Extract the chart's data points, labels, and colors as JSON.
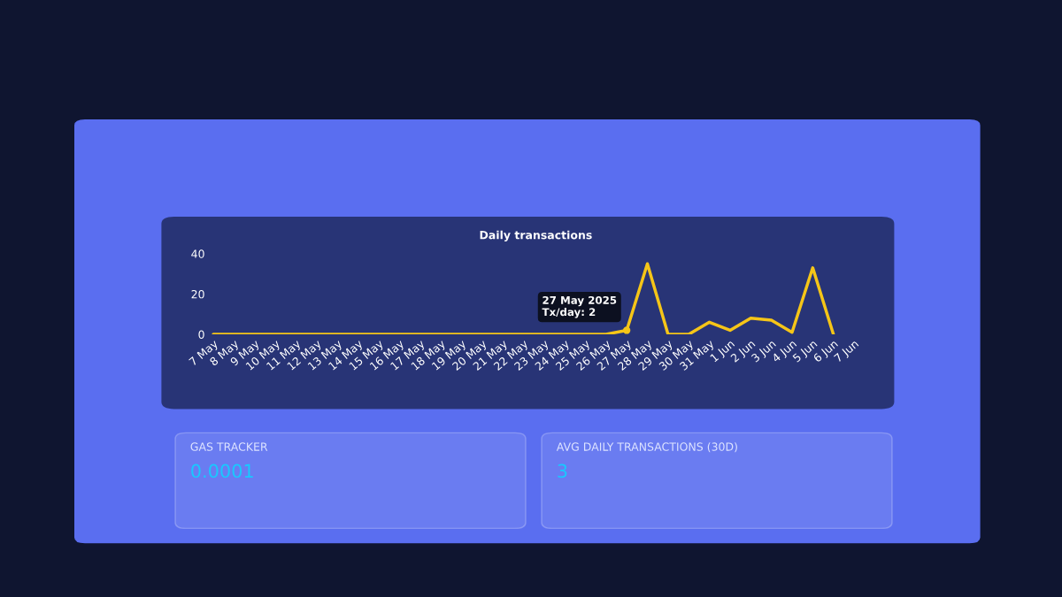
{
  "chart_data": {
    "type": "line",
    "title": "Daily transactions",
    "categories": [
      "7 May",
      "8 May",
      "9 May",
      "10 May",
      "11 May",
      "12 May",
      "13 May",
      "14 May",
      "15 May",
      "16 May",
      "17 May",
      "18 May",
      "19 May",
      "20 May",
      "21 May",
      "22 May",
      "23 May",
      "24 May",
      "25 May",
      "26 May",
      "27 May",
      "28 May",
      "29 May",
      "30 May",
      "31 May",
      "1 Jun",
      "2 Jun",
      "3 Jun",
      "4 Jun",
      "5 Jun",
      "6 Jun",
      "7 Jun"
    ],
    "series": [
      {
        "color": "#f5c518",
        "values": [
          0,
          0,
          0,
          0,
          0,
          0,
          0,
          0,
          0,
          0,
          0,
          0,
          0,
          0,
          0,
          0,
          0,
          0,
          0,
          0,
          2,
          35,
          0,
          0,
          6,
          2,
          8,
          7,
          1,
          33,
          0,
          null
        ]
      }
    ],
    "ylim": [
      0,
      40
    ],
    "yticks": [
      0,
      20,
      40
    ],
    "grid": false,
    "marker": "none",
    "line_style": "solid",
    "annotations": [
      {
        "text": "27 May 2025\nTx/day: 2",
        "x": "27 May",
        "y": 2
      },
      "GAS TRACKER",
      "0.0001",
      "AVG DAILY TRANSACTIONS (30D)",
      "3"
    ]
  }
}
